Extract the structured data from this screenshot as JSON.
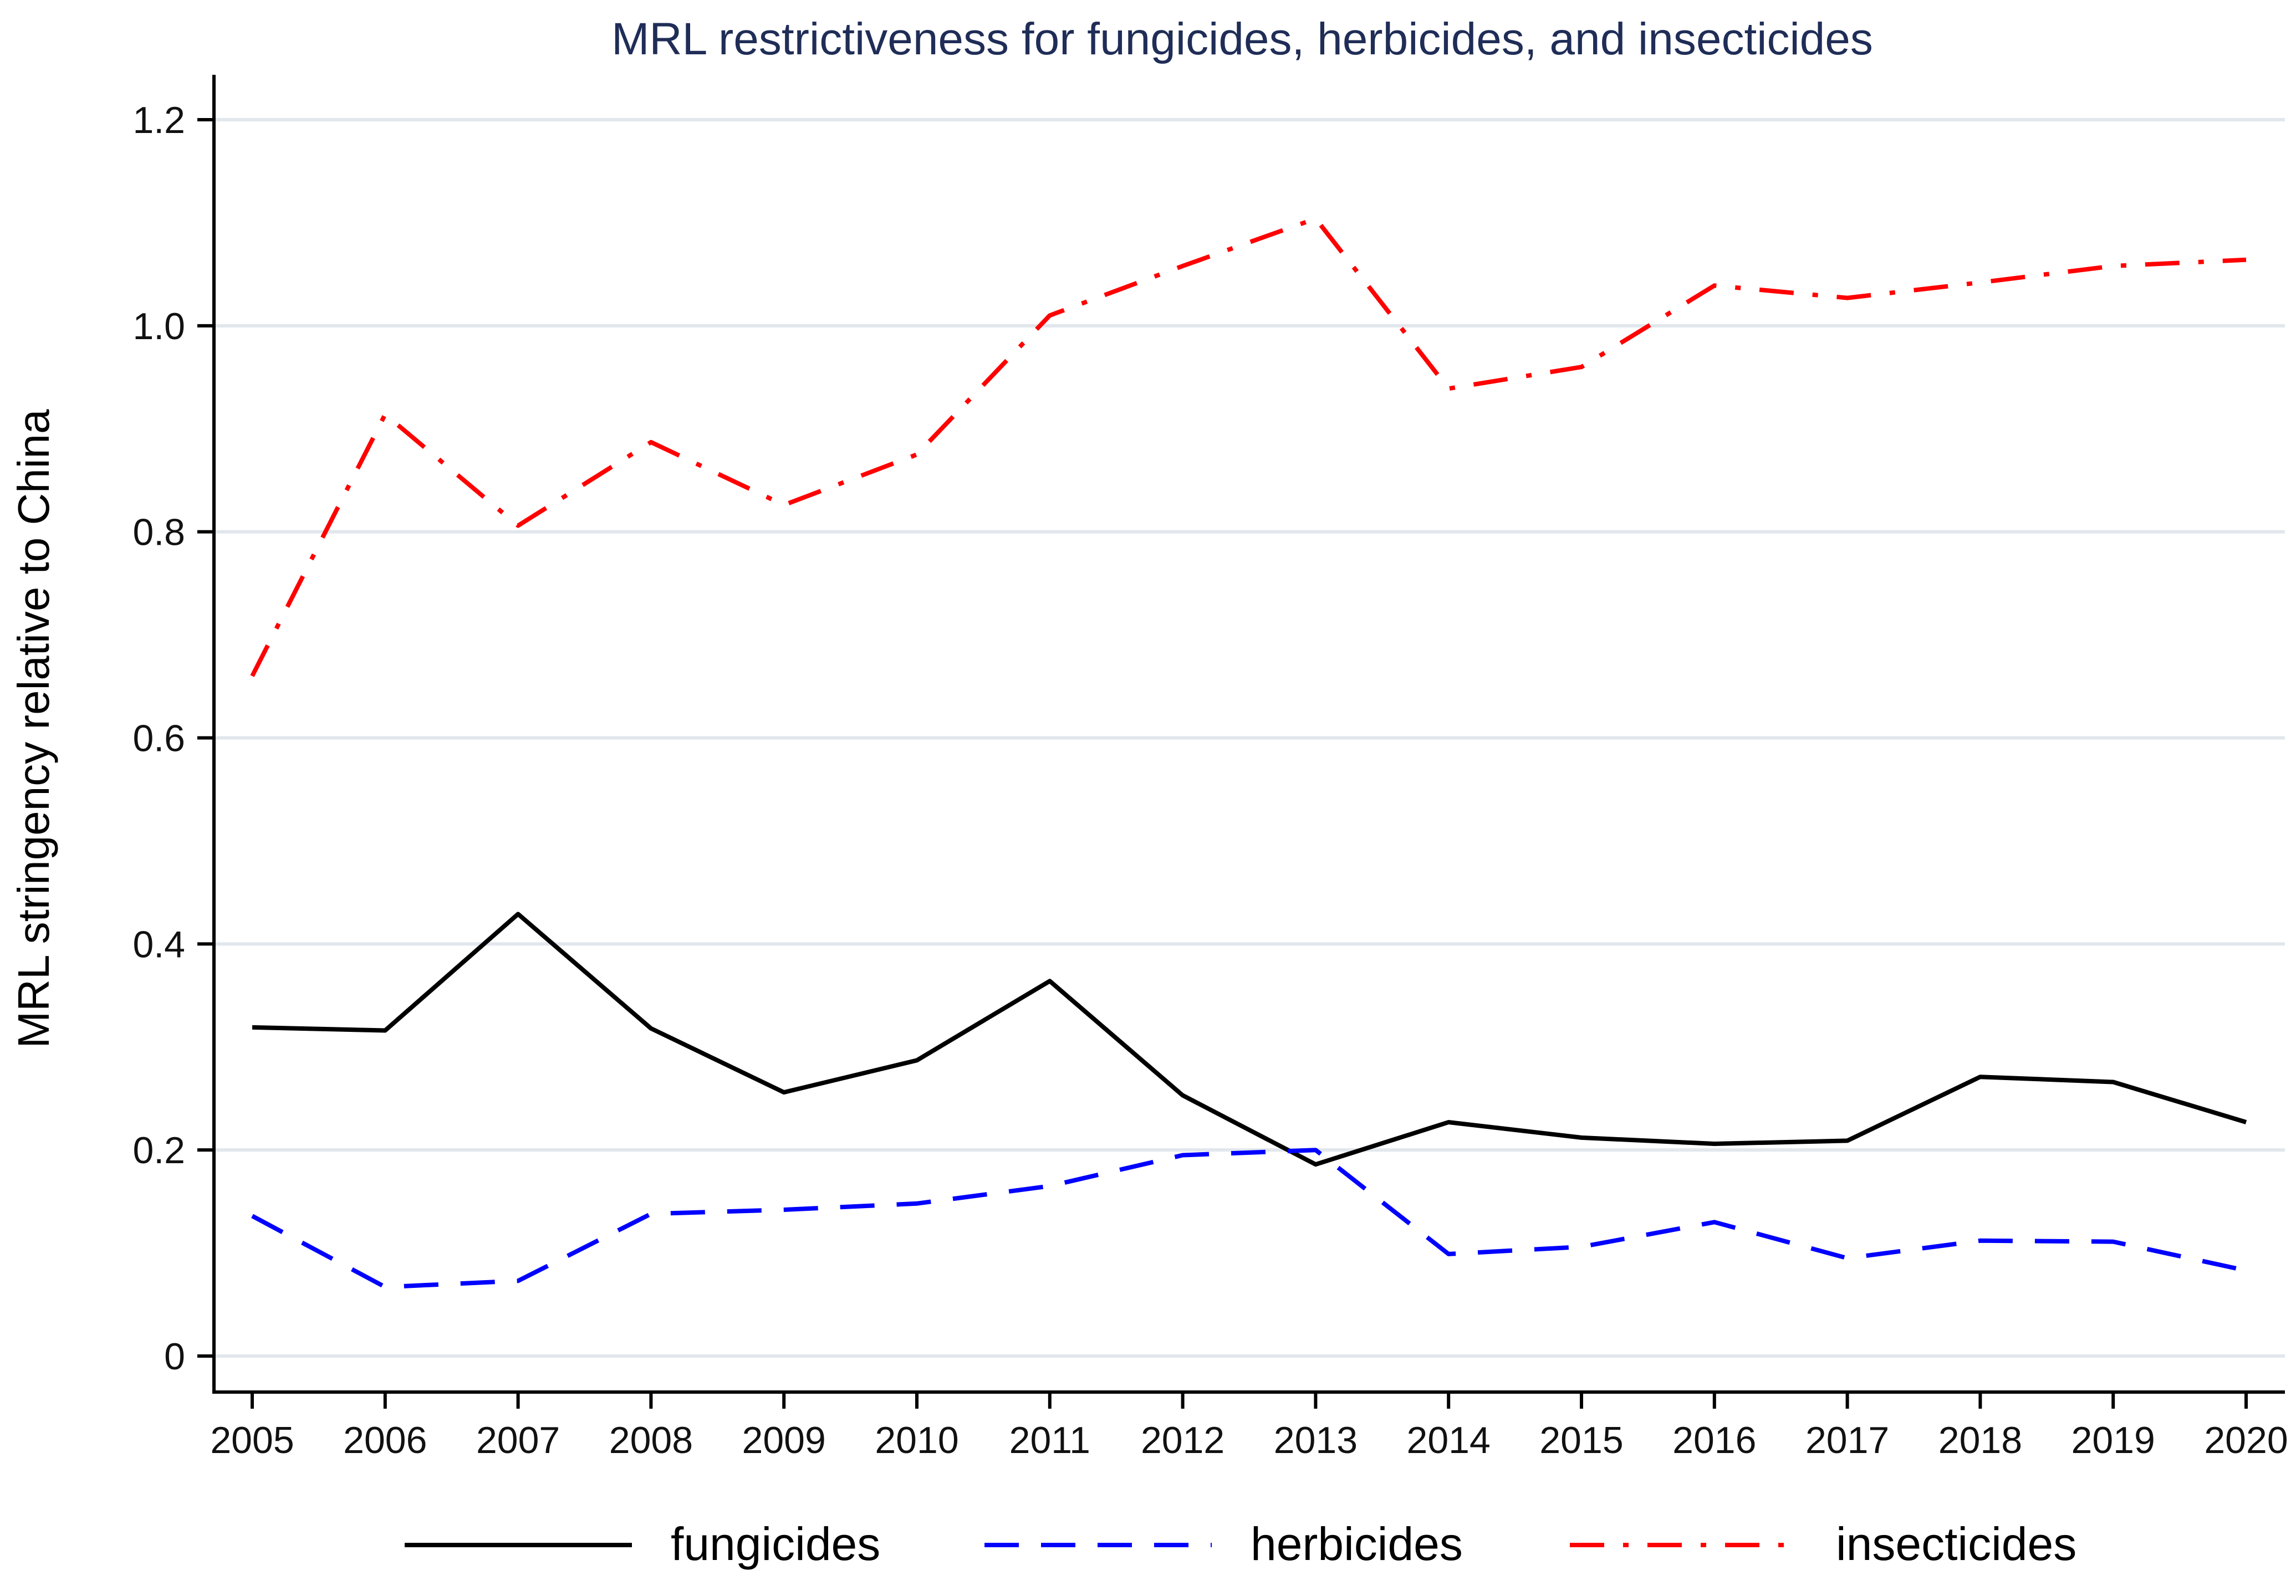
{
  "chart_data": {
    "type": "line",
    "title": "MRL restrictiveness for fungicides, herbicides, and insecticides",
    "xlabel": "",
    "ylabel": "MRL stringency relative to China",
    "x": [
      2005,
      2006,
      2007,
      2008,
      2009,
      2010,
      2011,
      2012,
      2013,
      2014,
      2015,
      2016,
      2017,
      2018,
      2019,
      2020
    ],
    "x_tick_labels": [
      "2005",
      "2006",
      "2007",
      "2008",
      "2009",
      "2010",
      "2011",
      "2012",
      "2013",
      "2014",
      "2015",
      "2016",
      "2017",
      "2018",
      "2019",
      "2020"
    ],
    "ylim": [
      0,
      1.2
    ],
    "y_ticks": [
      0,
      0.2,
      0.4,
      0.6,
      0.8,
      1.0,
      1.2
    ],
    "y_tick_labels": [
      "0",
      "0.2",
      "0.4",
      "0.6",
      "0.8",
      "1.0",
      "1.2"
    ],
    "grid": true,
    "legend_position": "bottom",
    "series": [
      {
        "name": "fungicides",
        "color": "#000000",
        "dash": "solid",
        "values": [
          0.319,
          0.316,
          0.429,
          0.318,
          0.256,
          0.287,
          0.364,
          0.253,
          0.186,
          0.227,
          0.212,
          0.206,
          0.209,
          0.271,
          0.266,
          0.227
        ]
      },
      {
        "name": "herbicides",
        "color": "#0000ff",
        "dash": "dashed",
        "values": [
          0.136,
          0.067,
          0.073,
          0.138,
          0.142,
          0.148,
          0.165,
          0.195,
          0.2,
          0.099,
          0.106,
          0.13,
          0.095,
          0.112,
          0.111,
          0.083
        ]
      },
      {
        "name": "insecticides",
        "color": "#ff0000",
        "dash": "dashdot",
        "values": [
          0.66,
          0.914,
          0.806,
          0.887,
          0.826,
          0.875,
          1.01,
          1.058,
          1.104,
          0.939,
          0.96,
          1.039,
          1.027,
          1.042,
          1.058,
          1.064
        ]
      }
    ]
  }
}
